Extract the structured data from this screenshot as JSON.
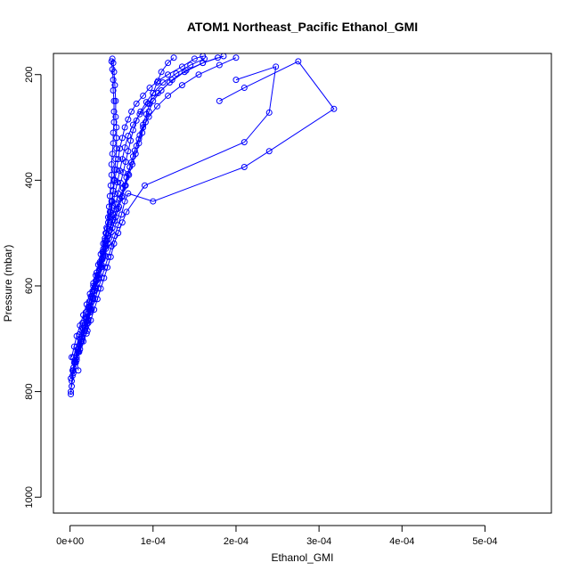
{
  "chart_data": {
    "type": "line",
    "title": "ATOM1 Northeast_Pacific Ethanol_GMI",
    "xlabel": "Ethanol_GMI",
    "ylabel": "Pressure (mbar)",
    "xlim": [
      -2e-05,
      0.00058
    ],
    "ylim": [
      1030,
      160
    ],
    "y_axis_inverted": true,
    "grid": false,
    "legend": "none",
    "series_color": "#0000ff",
    "marker": "open-circle",
    "x_ticks": [
      {
        "value": 0,
        "label": "0e+00"
      },
      {
        "value": 0.0001,
        "label": "1e-04"
      },
      {
        "value": 0.0002,
        "label": "2e-04"
      },
      {
        "value": 0.0003,
        "label": "3e-04"
      },
      {
        "value": 0.0004,
        "label": "4e-04"
      },
      {
        "value": 0.0005,
        "label": "5e-04"
      }
    ],
    "y_ticks": [
      {
        "value": 200,
        "label": "200"
      },
      {
        "value": 400,
        "label": "400"
      },
      {
        "value": 600,
        "label": "600"
      },
      {
        "value": 800,
        "label": "800"
      },
      {
        "value": 1000,
        "label": "1000"
      }
    ],
    "series": [
      {
        "points": [
          [
            1e-06,
            805
          ],
          [
            2e-06,
            780
          ],
          [
            4e-06,
            760
          ],
          [
            6e-06,
            740
          ],
          [
            9e-06,
            720
          ],
          [
            1.2e-05,
            700
          ],
          [
            1.5e-05,
            680
          ],
          [
            1.9e-05,
            660
          ],
          [
            2.3e-05,
            640
          ],
          [
            2.7e-05,
            620
          ],
          [
            3.1e-05,
            600
          ],
          [
            3.5e-05,
            580
          ],
          [
            3.8e-05,
            560
          ],
          [
            4e-05,
            540
          ],
          [
            4.2e-05,
            520
          ],
          [
            4.4e-05,
            500
          ],
          [
            4.6e-05,
            480
          ],
          [
            4.8e-05,
            460
          ],
          [
            5e-05,
            440
          ],
          [
            5.2e-05,
            420
          ],
          [
            5.4e-05,
            400
          ],
          [
            5.6e-05,
            380
          ],
          [
            5.8e-05,
            360
          ],
          [
            6e-05,
            340
          ],
          [
            6.3e-05,
            320
          ],
          [
            6.6e-05,
            300
          ],
          [
            7e-05,
            285
          ],
          [
            7.4e-05,
            270
          ],
          [
            8e-05,
            255
          ],
          [
            8.8e-05,
            240
          ],
          [
            9.6e-05,
            225
          ],
          [
            0.000106,
            212
          ],
          [
            0.000118,
            200
          ],
          [
            0.000135,
            185
          ],
          [
            0.00015,
            170
          ],
          [
            0.00016,
            165
          ]
        ]
      },
      {
        "points": [
          [
            1e-06,
            800
          ],
          [
            3e-06,
            770
          ],
          [
            6e-06,
            745
          ],
          [
            1e-05,
            725
          ],
          [
            1.4e-05,
            705
          ],
          [
            1.8e-05,
            685
          ],
          [
            2.2e-05,
            665
          ],
          [
            2.6e-05,
            645
          ],
          [
            3e-05,
            625
          ],
          [
            3.4e-05,
            605
          ],
          [
            3.8e-05,
            585
          ],
          [
            4.2e-05,
            565
          ],
          [
            4.6e-05,
            545
          ],
          [
            5e-05,
            525
          ],
          [
            5.4e-05,
            505
          ],
          [
            5.8e-05,
            485
          ],
          [
            6.2e-05,
            465
          ],
          [
            6.6e-05,
            440
          ],
          [
            7e-05,
            425
          ],
          [
            0.0001,
            440
          ],
          [
            0.00021,
            375
          ],
          [
            0.00024,
            345
          ],
          [
            0.000318,
            265
          ],
          [
            0.000275,
            175
          ],
          [
            0.00021,
            225
          ],
          [
            0.00018,
            250
          ]
        ]
      },
      {
        "points": [
          [
            2e-06,
            790
          ],
          [
            4e-06,
            765
          ],
          [
            7e-06,
            745
          ],
          [
            1.1e-05,
            725
          ],
          [
            1.6e-05,
            705
          ],
          [
            2.1e-05,
            685
          ],
          [
            2.5e-05,
            665
          ],
          [
            2.9e-05,
            645
          ],
          [
            3.3e-05,
            625
          ],
          [
            3.7e-05,
            605
          ],
          [
            4.1e-05,
            585
          ],
          [
            4.5e-05,
            565
          ],
          [
            4.9e-05,
            545
          ],
          [
            5.3e-05,
            520
          ],
          [
            5.8e-05,
            500
          ],
          [
            6.3e-05,
            480
          ],
          [
            6.8e-05,
            460
          ],
          [
            9e-05,
            410
          ],
          [
            0.00021,
            328
          ],
          [
            0.00024,
            272
          ],
          [
            0.000248,
            185
          ],
          [
            0.0002,
            210
          ]
        ]
      },
      {
        "points": [
          [
            1e-06,
            775
          ],
          [
            4e-06,
            755
          ],
          [
            8e-06,
            735
          ],
          [
            1.2e-05,
            712
          ],
          [
            1.6e-05,
            690
          ],
          [
            2e-05,
            668
          ],
          [
            2.4e-05,
            646
          ],
          [
            2.7e-05,
            624
          ],
          [
            3e-05,
            602
          ],
          [
            3.3e-05,
            580
          ],
          [
            3.6e-05,
            558
          ],
          [
            3.9e-05,
            536
          ],
          [
            4.2e-05,
            514
          ],
          [
            4.5e-05,
            492
          ],
          [
            4.8e-05,
            470
          ],
          [
            5.1e-05,
            448
          ],
          [
            5.4e-05,
            426
          ],
          [
            5.7e-05,
            404
          ],
          [
            6e-05,
            382
          ],
          [
            6.3e-05,
            360
          ],
          [
            6.6e-05,
            338
          ],
          [
            7e-05,
            316
          ],
          [
            7.6e-05,
            295
          ],
          [
            8.4e-05,
            275
          ],
          [
            9.4e-05,
            255
          ],
          [
            0.000106,
            235
          ],
          [
            0.00012,
            215
          ],
          [
            0.000138,
            195
          ],
          [
            0.00016,
            178
          ],
          [
            0.000185,
            165
          ]
        ]
      },
      {
        "points": [
          [
            3e-06,
            760
          ],
          [
            6e-06,
            740
          ],
          [
            1e-05,
            718
          ],
          [
            1.4e-05,
            696
          ],
          [
            1.8e-05,
            674
          ],
          [
            2.2e-05,
            652
          ],
          [
            2.6e-05,
            630
          ],
          [
            3e-05,
            608
          ],
          [
            3.4e-05,
            586
          ],
          [
            3.8e-05,
            564
          ],
          [
            4.2e-05,
            542
          ],
          [
            4.6e-05,
            520
          ],
          [
            5e-05,
            498
          ],
          [
            5.4e-05,
            476
          ],
          [
            5.8e-05,
            454
          ],
          [
            6.2e-05,
            432
          ],
          [
            6.6e-05,
            410
          ],
          [
            7e-05,
            388
          ],
          [
            7.4e-05,
            366
          ],
          [
            7.8e-05,
            344
          ],
          [
            8.3e-05,
            322
          ],
          [
            8.8e-05,
            300
          ],
          [
            9.5e-05,
            280
          ],
          [
            0.000105,
            260
          ],
          [
            0.000118,
            240
          ],
          [
            0.000135,
            220
          ],
          [
            0.000155,
            200
          ],
          [
            0.00018,
            182
          ],
          [
            0.0002,
            168
          ]
        ]
      },
      {
        "points": [
          [
            1e-05,
            760
          ],
          [
            8e-06,
            740
          ],
          [
            1.2e-05,
            720
          ],
          [
            1.5e-05,
            700
          ],
          [
            1.8e-05,
            680
          ],
          [
            2e-05,
            660
          ],
          [
            2.2e-05,
            640
          ],
          [
            2.5e-05,
            620
          ],
          [
            2.8e-05,
            600
          ],
          [
            3.1e-05,
            580
          ],
          [
            3.4e-05,
            560
          ],
          [
            3.7e-05,
            540
          ],
          [
            4e-05,
            520
          ],
          [
            4.3e-05,
            500
          ],
          [
            4.6e-05,
            480
          ],
          [
            4.9e-05,
            460
          ],
          [
            5.1e-05,
            440
          ],
          [
            5.2e-05,
            420
          ],
          [
            5.3e-05,
            400
          ],
          [
            5.4e-05,
            380
          ],
          [
            5.5e-05,
            360
          ],
          [
            5.6e-05,
            340
          ],
          [
            5.6e-05,
            320
          ],
          [
            5.6e-05,
            300
          ],
          [
            5.5e-05,
            280
          ],
          [
            5.5e-05,
            250
          ],
          [
            5.4e-05,
            220
          ],
          [
            5.3e-05,
            195
          ],
          [
            5.2e-05,
            178
          ],
          [
            5.1e-05,
            170
          ]
        ]
      },
      {
        "points": [
          [
            2e-06,
            735
          ],
          [
            5e-06,
            715
          ],
          [
            8e-06,
            695
          ],
          [
            1.2e-05,
            675
          ],
          [
            1.6e-05,
            655
          ],
          [
            2e-05,
            635
          ],
          [
            2.4e-05,
            615
          ],
          [
            2.8e-05,
            595
          ],
          [
            3.2e-05,
            575
          ],
          [
            3.6e-05,
            555
          ],
          [
            4e-05,
            535
          ],
          [
            4.4e-05,
            515
          ],
          [
            4.8e-05,
            495
          ],
          [
            5.2e-05,
            475
          ],
          [
            5.6e-05,
            455
          ],
          [
            6e-05,
            435
          ],
          [
            6.4e-05,
            415
          ],
          [
            6.8e-05,
            395
          ],
          [
            7.2e-05,
            375
          ],
          [
            7.6e-05,
            355
          ],
          [
            8e-05,
            335
          ],
          [
            8.4e-05,
            315
          ],
          [
            8.8e-05,
            295
          ],
          [
            9.2e-05,
            275
          ],
          [
            9.6e-05,
            255
          ],
          [
            0.0001,
            235
          ],
          [
            0.000105,
            215
          ],
          [
            0.00011,
            195
          ],
          [
            0.000118,
            178
          ],
          [
            0.000125,
            168
          ]
        ]
      },
      {
        "points": [
          [
            5e-06,
            745
          ],
          [
            9e-06,
            725
          ],
          [
            1.3e-05,
            705
          ],
          [
            1.7e-05,
            685
          ],
          [
            2.1e-05,
            665
          ],
          [
            2.5e-05,
            645
          ],
          [
            2.8e-05,
            625
          ],
          [
            3.1e-05,
            605
          ],
          [
            3.4e-05,
            585
          ],
          [
            3.7e-05,
            565
          ],
          [
            4e-05,
            545
          ],
          [
            4.3e-05,
            525
          ],
          [
            4.6e-05,
            505
          ],
          [
            4.9e-05,
            485
          ],
          [
            5.2e-05,
            465
          ],
          [
            5.5e-05,
            445
          ],
          [
            5.8e-05,
            425
          ],
          [
            6.1e-05,
            405
          ],
          [
            6.4e-05,
            385
          ],
          [
            6.7e-05,
            365
          ],
          [
            7e-05,
            345
          ],
          [
            7.3e-05,
            325
          ],
          [
            7.6e-05,
            305
          ],
          [
            8e-05,
            287
          ],
          [
            8.5e-05,
            270
          ],
          [
            9.2e-05,
            252
          ],
          [
            0.0001,
            235
          ],
          [
            0.000112,
            215
          ],
          [
            0.000128,
            198
          ],
          [
            0.000145,
            182
          ],
          [
            0.000162,
            170
          ]
        ]
      },
      {
        "points": [
          [
            4e-06,
            735
          ],
          [
            8e-06,
            715
          ],
          [
            1.1e-05,
            692
          ],
          [
            1.5e-05,
            670
          ],
          [
            1.9e-05,
            650
          ],
          [
            2.3e-05,
            630
          ],
          [
            2.7e-05,
            610
          ],
          [
            3.1e-05,
            590
          ],
          [
            3.5e-05,
            570
          ],
          [
            3.9e-05,
            550
          ],
          [
            4.3e-05,
            530
          ],
          [
            4.7e-05,
            510
          ],
          [
            5.1e-05,
            490
          ],
          [
            5.5e-05,
            470
          ],
          [
            5.9e-05,
            450
          ],
          [
            6.3e-05,
            430
          ],
          [
            6.7e-05,
            410
          ],
          [
            7.1e-05,
            390
          ],
          [
            7.5e-05,
            370
          ],
          [
            7.9e-05,
            350
          ],
          [
            8.3e-05,
            330
          ],
          [
            8.7e-05,
            310
          ],
          [
            9.1e-05,
            290
          ],
          [
            9.5e-05,
            270
          ],
          [
            0.0001,
            250
          ],
          [
            0.00011,
            230
          ],
          [
            0.000123,
            210
          ],
          [
            0.00014,
            192
          ],
          [
            0.00016,
            178
          ],
          [
            0.000178,
            168
          ]
        ]
      },
      {
        "points": [
          [
            2e-05,
            690
          ],
          [
            2.2e-05,
            670
          ],
          [
            2.4e-05,
            650
          ],
          [
            2.6e-05,
            630
          ],
          [
            2.9e-05,
            610
          ],
          [
            3.2e-05,
            590
          ],
          [
            3.5e-05,
            570
          ],
          [
            3.8e-05,
            550
          ],
          [
            4e-05,
            530
          ],
          [
            4.2e-05,
            510
          ],
          [
            4.4e-05,
            490
          ],
          [
            4.6e-05,
            470
          ],
          [
            4.7e-05,
            450
          ],
          [
            4.8e-05,
            430
          ],
          [
            4.9e-05,
            410
          ],
          [
            5e-05,
            390
          ],
          [
            5e-05,
            370
          ],
          [
            5.1e-05,
            350
          ],
          [
            5.2e-05,
            330
          ],
          [
            5.2e-05,
            310
          ],
          [
            5.3e-05,
            290
          ],
          [
            5.3e-05,
            270
          ],
          [
            5.3e-05,
            250
          ],
          [
            5.2e-05,
            230
          ],
          [
            5.2e-05,
            210
          ],
          [
            5.1e-05,
            190
          ],
          [
            5e-05,
            175
          ]
        ]
      }
    ]
  }
}
